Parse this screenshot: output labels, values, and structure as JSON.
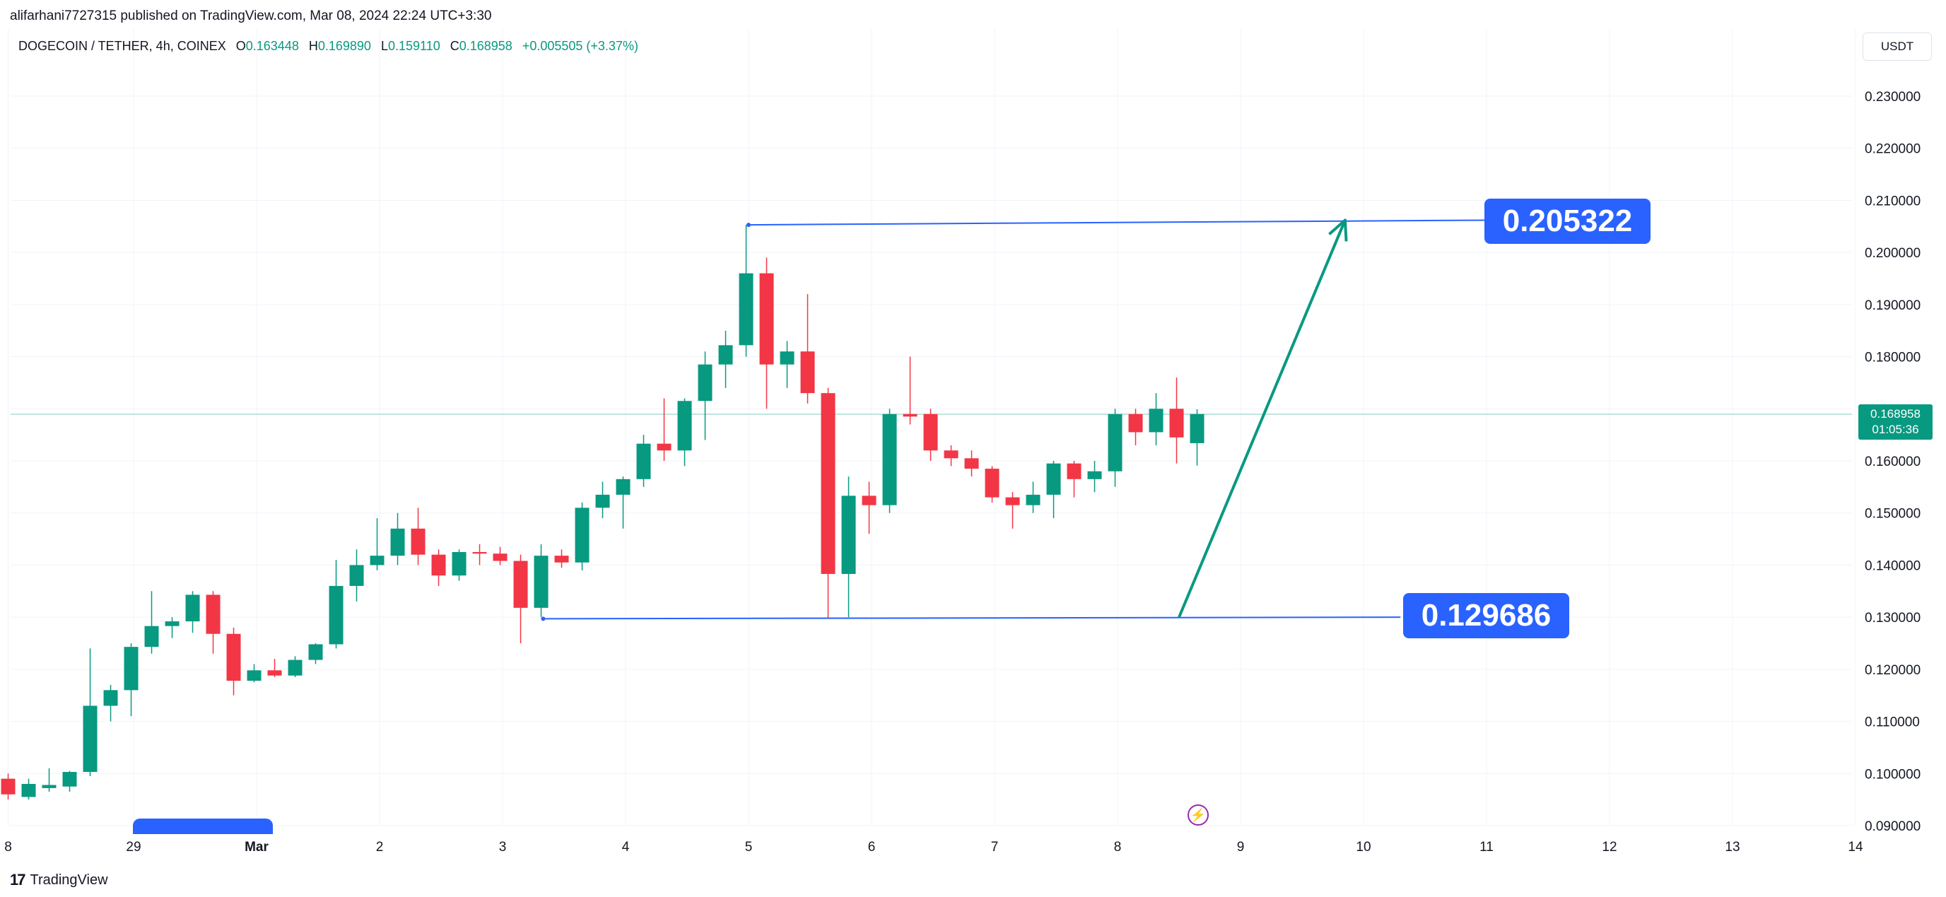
{
  "header": {
    "publisher": "alifarhani7727315 published on TradingView.com, Mar 08, 2024 22:24 UTC+3:30",
    "symbol": "DOGECOIN / TETHER, 4h, COINEX",
    "ohlc": {
      "o_label": "O",
      "o": "0.163448",
      "h_label": "H",
      "h": "0.169890",
      "l_label": "L",
      "l": "0.159110",
      "c_label": "C",
      "c": "0.168958",
      "change": "+0.005505 (+3.37%)"
    },
    "currency": "USDT"
  },
  "last_price": {
    "price": "0.168958",
    "countdown": "01:05:36"
  },
  "annotations": {
    "target_high": "0.205322",
    "target_low": "0.129686"
  },
  "footer": {
    "brand": "TradingView"
  },
  "colors": {
    "up": "#089981",
    "down": "#f23645",
    "drawing": "#2962ff",
    "arrow": "#089981",
    "grid": "#f0f3fa"
  },
  "chart_data": {
    "type": "candlestick",
    "interval": "4h",
    "ylim": [
      0.09,
      0.235
    ],
    "y_ticks": [
      "0.230000",
      "0.220000",
      "0.210000",
      "0.200000",
      "0.190000",
      "0.180000",
      "0.170000",
      "0.160000",
      "0.150000",
      "0.140000",
      "0.130000",
      "0.120000",
      "0.110000",
      "0.100000",
      "0.090000"
    ],
    "x_ticks": [
      {
        "label": "8",
        "t": -0.02
      },
      {
        "label": "29",
        "t": 1.0
      },
      {
        "label": "Mar",
        "t": 2.0
      },
      {
        "label": "2",
        "t": 3.0
      },
      {
        "label": "3",
        "t": 4.0
      },
      {
        "label": "4",
        "t": 5.0
      },
      {
        "label": "5",
        "t": 6.0
      },
      {
        "label": "6",
        "t": 7.0
      },
      {
        "label": "7",
        "t": 8.0
      },
      {
        "label": "8",
        "t": 9.0
      },
      {
        "label": "9",
        "t": 10.0
      },
      {
        "label": "10",
        "t": 11.0
      },
      {
        "label": "11",
        "t": 12.0
      },
      {
        "label": "12",
        "t": 13.0
      },
      {
        "label": "13",
        "t": 14.0
      },
      {
        "label": "14",
        "t": 15.0
      }
    ],
    "candles": [
      {
        "o": 0.099,
        "h": 0.1,
        "l": 0.095,
        "c": 0.096
      },
      {
        "o": 0.0955,
        "h": 0.099,
        "l": 0.095,
        "c": 0.098
      },
      {
        "o": 0.0972,
        "h": 0.101,
        "l": 0.0965,
        "c": 0.0978
      },
      {
        "o": 0.0975,
        "h": 0.1005,
        "l": 0.0965,
        "c": 0.1003
      },
      {
        "o": 0.1003,
        "h": 0.124,
        "l": 0.0995,
        "c": 0.113
      },
      {
        "o": 0.113,
        "h": 0.117,
        "l": 0.11,
        "c": 0.116
      },
      {
        "o": 0.116,
        "h": 0.125,
        "l": 0.111,
        "c": 0.1243
      },
      {
        "o": 0.1243,
        "h": 0.135,
        "l": 0.123,
        "c": 0.1283
      },
      {
        "o": 0.1283,
        "h": 0.13,
        "l": 0.126,
        "c": 0.1292
      },
      {
        "o": 0.1292,
        "h": 0.135,
        "l": 0.127,
        "c": 0.1343
      },
      {
        "o": 0.1343,
        "h": 0.135,
        "l": 0.123,
        "c": 0.1268
      },
      {
        "o": 0.1268,
        "h": 0.128,
        "l": 0.115,
        "c": 0.1178
      },
      {
        "o": 0.1178,
        "h": 0.121,
        "l": 0.1175,
        "c": 0.1198
      },
      {
        "o": 0.1198,
        "h": 0.122,
        "l": 0.1185,
        "c": 0.1188
      },
      {
        "o": 0.1188,
        "h": 0.1225,
        "l": 0.1185,
        "c": 0.1218
      },
      {
        "o": 0.1218,
        "h": 0.125,
        "l": 0.121,
        "c": 0.1248
      },
      {
        "o": 0.1248,
        "h": 0.141,
        "l": 0.124,
        "c": 0.136
      },
      {
        "o": 0.136,
        "h": 0.143,
        "l": 0.133,
        "c": 0.14
      },
      {
        "o": 0.14,
        "h": 0.149,
        "l": 0.139,
        "c": 0.1418
      },
      {
        "o": 0.1418,
        "h": 0.15,
        "l": 0.14,
        "c": 0.147
      },
      {
        "o": 0.147,
        "h": 0.151,
        "l": 0.14,
        "c": 0.142
      },
      {
        "o": 0.142,
        "h": 0.143,
        "l": 0.136,
        "c": 0.138
      },
      {
        "o": 0.138,
        "h": 0.143,
        "l": 0.137,
        "c": 0.1425
      },
      {
        "o": 0.1425,
        "h": 0.144,
        "l": 0.14,
        "c": 0.1422
      },
      {
        "o": 0.1422,
        "h": 0.1435,
        "l": 0.14,
        "c": 0.1408
      },
      {
        "o": 0.1408,
        "h": 0.142,
        "l": 0.125,
        "c": 0.1318
      },
      {
        "o": 0.1318,
        "h": 0.144,
        "l": 0.13,
        "c": 0.1418
      },
      {
        "o": 0.1418,
        "h": 0.143,
        "l": 0.1395,
        "c": 0.1405
      },
      {
        "o": 0.1405,
        "h": 0.152,
        "l": 0.139,
        "c": 0.151
      },
      {
        "o": 0.151,
        "h": 0.156,
        "l": 0.149,
        "c": 0.1535
      },
      {
        "o": 0.1535,
        "h": 0.157,
        "l": 0.147,
        "c": 0.1565
      },
      {
        "o": 0.1565,
        "h": 0.165,
        "l": 0.155,
        "c": 0.1633
      },
      {
        "o": 0.1633,
        "h": 0.172,
        "l": 0.16,
        "c": 0.162
      },
      {
        "o": 0.162,
        "h": 0.172,
        "l": 0.159,
        "c": 0.1715
      },
      {
        "o": 0.1715,
        "h": 0.181,
        "l": 0.164,
        "c": 0.1785
      },
      {
        "o": 0.1785,
        "h": 0.185,
        "l": 0.174,
        "c": 0.1822
      },
      {
        "o": 0.1822,
        "h": 0.2053,
        "l": 0.18,
        "c": 0.196
      },
      {
        "o": 0.196,
        "h": 0.199,
        "l": 0.17,
        "c": 0.1785
      },
      {
        "o": 0.1785,
        "h": 0.183,
        "l": 0.174,
        "c": 0.181
      },
      {
        "o": 0.181,
        "h": 0.192,
        "l": 0.171,
        "c": 0.173
      },
      {
        "o": 0.173,
        "h": 0.174,
        "l": 0.1297,
        "c": 0.1383
      },
      {
        "o": 0.1383,
        "h": 0.157,
        "l": 0.13,
        "c": 0.1533
      },
      {
        "o": 0.1533,
        "h": 0.156,
        "l": 0.146,
        "c": 0.1515
      },
      {
        "o": 0.1515,
        "h": 0.17,
        "l": 0.15,
        "c": 0.169
      },
      {
        "o": 0.169,
        "h": 0.18,
        "l": 0.167,
        "c": 0.1685
      },
      {
        "o": 0.169,
        "h": 0.17,
        "l": 0.16,
        "c": 0.162
      },
      {
        "o": 0.162,
        "h": 0.163,
        "l": 0.159,
        "c": 0.1605
      },
      {
        "o": 0.1605,
        "h": 0.162,
        "l": 0.157,
        "c": 0.1585
      },
      {
        "o": 0.1585,
        "h": 0.159,
        "l": 0.152,
        "c": 0.153
      },
      {
        "o": 0.153,
        "h": 0.154,
        "l": 0.147,
        "c": 0.1515
      },
      {
        "o": 0.1515,
        "h": 0.156,
        "l": 0.15,
        "c": 0.1535
      },
      {
        "o": 0.1535,
        "h": 0.16,
        "l": 0.149,
        "c": 0.1595
      },
      {
        "o": 0.1595,
        "h": 0.16,
        "l": 0.153,
        "c": 0.1565
      },
      {
        "o": 0.1565,
        "h": 0.16,
        "l": 0.154,
        "c": 0.158
      },
      {
        "o": 0.158,
        "h": 0.17,
        "l": 0.155,
        "c": 0.169
      },
      {
        "o": 0.169,
        "h": 0.17,
        "l": 0.163,
        "c": 0.1655
      },
      {
        "o": 0.1655,
        "h": 0.173,
        "l": 0.163,
        "c": 0.17
      },
      {
        "o": 0.17,
        "h": 0.176,
        "l": 0.1595,
        "c": 0.1645
      },
      {
        "o": 0.1634,
        "h": 0.1699,
        "l": 0.1591,
        "c": 0.169
      }
    ],
    "drawings": {
      "high_line": {
        "t1": 6.0,
        "p1": 0.2053,
        "t2": 12.0,
        "p2": 0.2062
      },
      "low_line": {
        "t1": 4.33,
        "p1": 0.1297,
        "t2": 11.3,
        "p2": 0.13
      },
      "arrow": {
        "t1": 9.5,
        "p1": 0.13,
        "t2": 10.85,
        "p2": 0.2062
      }
    }
  }
}
